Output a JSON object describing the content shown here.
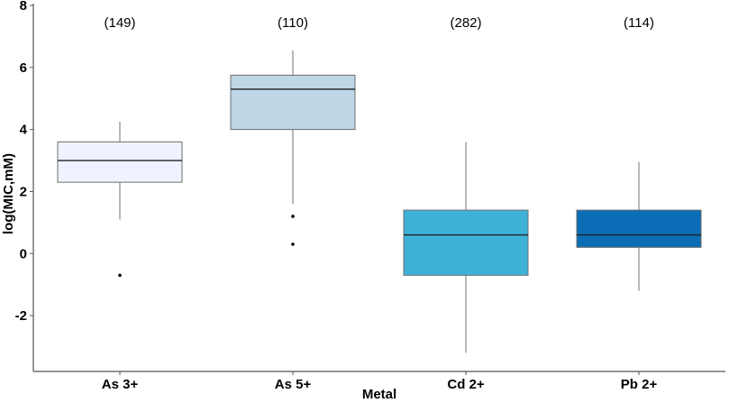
{
  "chart_data": {
    "type": "box",
    "xlabel": "Metal",
    "ylabel": "log(MIC,mM)",
    "ylim": [
      -3.8,
      8
    ],
    "yticks": [
      -2,
      0,
      2,
      4,
      6,
      8
    ],
    "grid": false,
    "categories": [
      "As 3+",
      "As 5+",
      "Cd 2+",
      "Pb 2+"
    ],
    "counts": [
      "(149)",
      "(110)",
      "(282)",
      "(114)"
    ],
    "boxes": [
      {
        "name": "As 3+",
        "whisker_low": 1.1,
        "q1": 2.3,
        "median": 3.0,
        "q3": 3.6,
        "whisker_high": 4.25,
        "outliers": [
          -0.7
        ],
        "color": "#eff3ff"
      },
      {
        "name": "As 5+",
        "whisker_low": 1.6,
        "q1": 4.0,
        "median": 5.3,
        "q3": 5.75,
        "whisker_high": 6.55,
        "outliers": [
          1.2,
          0.3
        ],
        "color": "#bdd7e7"
      },
      {
        "name": "Cd 2+",
        "whisker_low": -3.2,
        "q1": -0.7,
        "median": 0.6,
        "q3": 1.4,
        "whisker_high": 3.6,
        "outliers": [],
        "color": "#3eb1d9"
      },
      {
        "name": "Pb 2+",
        "whisker_low": -1.2,
        "q1": 0.2,
        "median": 0.6,
        "q3": 1.4,
        "whisker_high": 2.95,
        "outliers": [],
        "color": "#0a6db5"
      }
    ]
  }
}
